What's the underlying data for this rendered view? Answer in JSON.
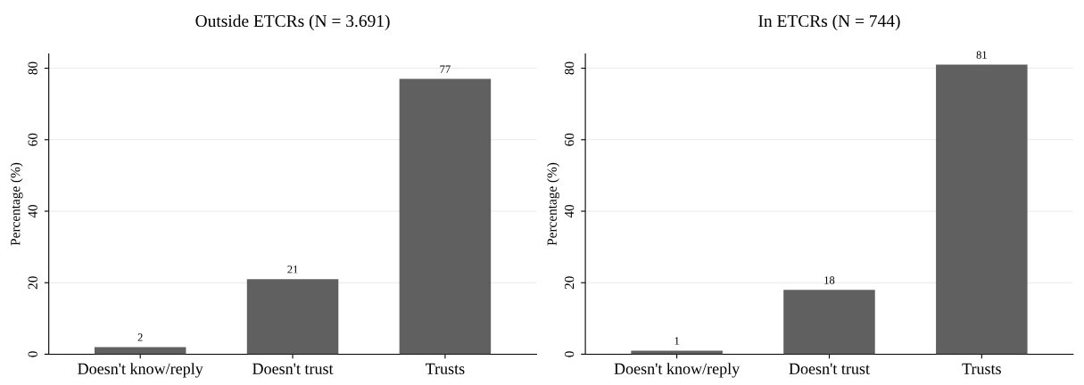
{
  "chart_data": [
    {
      "type": "bar",
      "title": "Outside ETCRs (N = 3.691)",
      "ylabel": "Percentage (%)",
      "categories": [
        "Doesn't know/reply",
        "Doesn't trust",
        "Trusts"
      ],
      "values": [
        2,
        21,
        77
      ],
      "color": "#606060",
      "data_labels": true,
      "ylim": [
        0,
        84
      ],
      "yticks": [
        0,
        20,
        40,
        60,
        80
      ],
      "grid": "y",
      "legend": false
    },
    {
      "type": "bar",
      "title": "In ETCRs (N = 744)",
      "ylabel": "Percentage (%)",
      "categories": [
        "Doesn't know/reply",
        "Doesn't trust",
        "Trusts"
      ],
      "values": [
        1,
        18,
        81
      ],
      "color": "#606060",
      "data_labels": true,
      "ylim": [
        0,
        84
      ],
      "yticks": [
        0,
        20,
        40,
        60,
        80
      ],
      "grid": "y",
      "legend": false
    }
  ]
}
